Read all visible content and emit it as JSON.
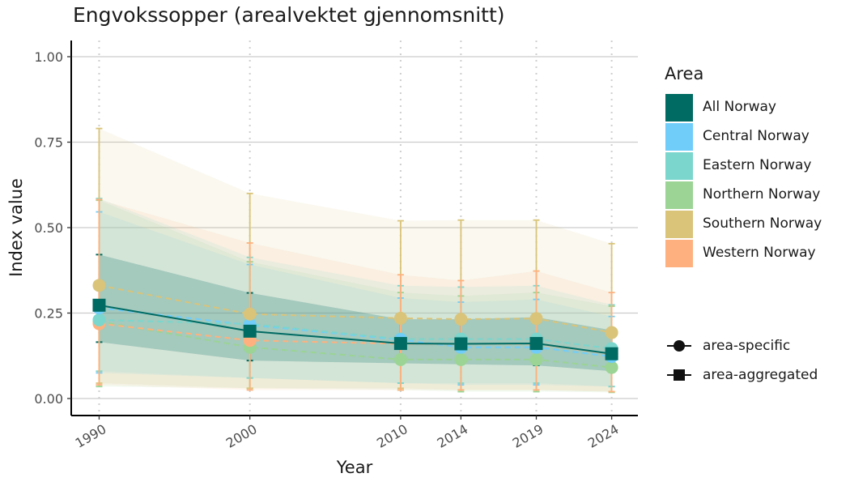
{
  "chart_data": {
    "type": "line",
    "title": "Engvokssopper (arealvektet gjennomsnitt)",
    "xlabel": "Year",
    "ylabel": "Index value",
    "x": [
      1990,
      2000,
      2010,
      2014,
      2019,
      2024
    ],
    "x_tick_labels": [
      "1990",
      "2000",
      "2010",
      "2014",
      "2019",
      "2024"
    ],
    "ylim": [
      0,
      1
    ],
    "y_ticks": [
      0,
      0.25,
      0.5,
      0.75,
      1
    ],
    "y_tick_labels": [
      "0.00",
      "0.25",
      "0.50",
      "0.75",
      "1.00"
    ],
    "grid": "horizontal major lines; dotted vertical lines at survey years",
    "legend": {
      "position": "right",
      "title": "Area",
      "shape_legend": [
        {
          "label": "area-specific",
          "shape": "circle"
        },
        {
          "label": "area-aggregated",
          "shape": "square"
        }
      ]
    },
    "series": [
      {
        "name": "All Norway",
        "color": "#006b63",
        "style": "solid",
        "shape": "square",
        "values": [
          0.273,
          0.197,
          0.161,
          0.16,
          0.161,
          0.131
        ],
        "error_lower": [
          0.165,
          0.111,
          0.103,
          0.1,
          0.097,
          0.08
        ],
        "error_upper": [
          0.421,
          0.309,
          0.232,
          0.232,
          0.238,
          0.2
        ],
        "band_lower": [
          0.165,
          0.111,
          0.103,
          0.1,
          0.097,
          0.08
        ],
        "band_upper": [
          0.421,
          0.309,
          0.232,
          0.232,
          0.238,
          0.2
        ]
      },
      {
        "name": "Central Norway",
        "color": "#70cdfa",
        "style": "dashed",
        "shape": "circle",
        "values": [
          0.265,
          0.215,
          0.172,
          0.15,
          0.15,
          0.123
        ],
        "error_lower": [
          0.075,
          0.06,
          0.045,
          0.04,
          0.04,
          0.035
        ],
        "error_upper": [
          0.546,
          0.392,
          0.294,
          0.282,
          0.29,
          0.24
        ],
        "band_lower": [
          0.075,
          0.06,
          0.045,
          0.04,
          0.04,
          0.035
        ],
        "band_upper": [
          0.546,
          0.392,
          0.294,
          0.282,
          0.29,
          0.24
        ]
      },
      {
        "name": "Eastern Norway",
        "color": "#7bd6cd",
        "style": "dashed",
        "shape": "circle",
        "values": [
          0.23,
          0.218,
          0.174,
          0.174,
          0.174,
          0.146
        ],
        "error_lower": [
          0.08,
          0.06,
          0.045,
          0.045,
          0.045,
          0.035
        ],
        "error_upper": [
          0.585,
          0.413,
          0.33,
          0.326,
          0.33,
          0.274
        ],
        "band_lower": [
          0.08,
          0.06,
          0.045,
          0.045,
          0.045,
          0.035
        ],
        "band_upper": [
          0.585,
          0.413,
          0.33,
          0.326,
          0.33,
          0.274
        ]
      },
      {
        "name": "Northern Norway",
        "color": "#9bd494",
        "style": "dashed",
        "shape": "circle",
        "values": [
          0.225,
          0.15,
          0.114,
          0.114,
          0.114,
          0.091
        ],
        "error_lower": [
          0.035,
          0.03,
          0.025,
          0.02,
          0.02,
          0.018
        ],
        "error_upper": [
          0.58,
          0.4,
          0.31,
          0.3,
          0.31,
          0.27
        ],
        "band_lower": [
          0.035,
          0.03,
          0.025,
          0.02,
          0.02,
          0.018
        ],
        "band_upper": [
          0.58,
          0.4,
          0.31,
          0.3,
          0.31,
          0.27
        ]
      },
      {
        "name": "Southern Norway",
        "color": "#d9c47a",
        "style": "dashed",
        "shape": "circle",
        "values": [
          0.331,
          0.247,
          0.235,
          0.232,
          0.234,
          0.193
        ],
        "error_lower": [
          0.045,
          0.03,
          0.03,
          0.025,
          0.025,
          0.02
        ],
        "error_upper": [
          0.79,
          0.6,
          0.52,
          0.522,
          0.522,
          0.453
        ],
        "band_lower": [
          0.045,
          0.03,
          0.03,
          0.025,
          0.025,
          0.02
        ],
        "band_upper": [
          0.79,
          0.6,
          0.52,
          0.522,
          0.522,
          0.453
        ]
      },
      {
        "name": "Western Norway",
        "color": "#feb17e",
        "style": "dashed",
        "shape": "circle",
        "values": [
          0.219,
          0.17,
          0.16,
          0.16,
          0.16,
          0.13
        ],
        "error_lower": [
          0.04,
          0.025,
          0.025,
          0.025,
          0.025,
          0.02
        ],
        "error_upper": [
          0.582,
          0.455,
          0.362,
          0.345,
          0.373,
          0.31
        ],
        "band_lower": [
          0.04,
          0.025,
          0.025,
          0.025,
          0.025,
          0.02
        ],
        "band_upper": [
          0.582,
          0.455,
          0.362,
          0.345,
          0.373,
          0.31
        ]
      }
    ]
  }
}
